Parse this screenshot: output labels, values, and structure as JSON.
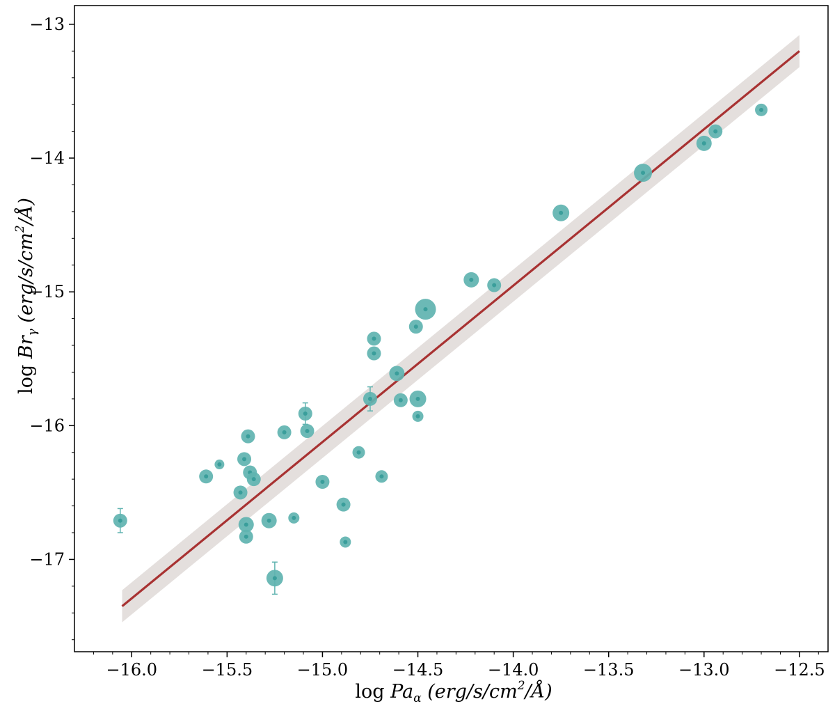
{
  "chart_data": {
    "type": "scatter",
    "xlabel": "log Pa_α (erg/s/cm^2/Å)",
    "ylabel": "log Br_γ (erg/s/cm^2/Å)",
    "xlabel_parts": {
      "prefix": "log ",
      "var": "Pa",
      "sub": "α",
      "units_a": " (erg/s/cm",
      "sup": "2",
      "units_b": "/Å)"
    },
    "ylabel_parts": {
      "prefix": "log ",
      "var": "Br",
      "sub": "γ",
      "units_a": " (erg/s/cm",
      "sup": "2",
      "units_b": "/Å)"
    },
    "xlim": [
      -16.3,
      -12.35
    ],
    "ylim": [
      -17.69,
      -12.86
    ],
    "xticks": [
      -16.0,
      -15.5,
      -15.0,
      -14.5,
      -14.0,
      -13.5,
      -13.0,
      -12.5
    ],
    "xtick_labels": [
      "−16.0",
      "−15.5",
      "−15.0",
      "−14.5",
      "−14.0",
      "−13.5",
      "−13.0",
      "−12.5"
    ],
    "yticks": [
      -13,
      -14,
      -15,
      -16,
      -17
    ],
    "ytick_labels": [
      "−13",
      "−14",
      "−15",
      "−16",
      "−17"
    ],
    "grid": false,
    "colors": {
      "points": "#5fb3b0",
      "point_core": "#3a9e9b",
      "fit_line": "#a83232",
      "fit_band": "#e4dfdd"
    },
    "fit": {
      "x": [
        -16.05,
        -12.5
      ],
      "y": [
        -17.35,
        -13.2
      ],
      "band_halfwidth": 0.12
    },
    "points": [
      {
        "x": -16.06,
        "y": -16.71,
        "yerr": 0.09,
        "size": 1.0
      },
      {
        "x": -15.61,
        "y": -16.38,
        "yerr": 0.0,
        "size": 1.0
      },
      {
        "x": -15.54,
        "y": -16.29,
        "yerr": 0.0,
        "size": 0.7
      },
      {
        "x": -15.43,
        "y": -16.5,
        "yerr": 0.0,
        "size": 1.0
      },
      {
        "x": -15.41,
        "y": -16.25,
        "yerr": 0.0,
        "size": 1.0
      },
      {
        "x": -15.39,
        "y": -16.08,
        "yerr": 0.0,
        "size": 1.0
      },
      {
        "x": -15.38,
        "y": -16.35,
        "yerr": 0.0,
        "size": 1.0
      },
      {
        "x": -15.36,
        "y": -16.4,
        "yerr": 0.0,
        "size": 1.0
      },
      {
        "x": -15.4,
        "y": -16.74,
        "yerr": 0.0,
        "size": 1.1
      },
      {
        "x": -15.4,
        "y": -16.83,
        "yerr": 0.0,
        "size": 1.0
      },
      {
        "x": -15.28,
        "y": -16.71,
        "yerr": 0.0,
        "size": 1.1
      },
      {
        "x": -15.25,
        "y": -17.14,
        "yerr": 0.12,
        "size": 1.2
      },
      {
        "x": -15.2,
        "y": -16.05,
        "yerr": 0.0,
        "size": 1.0
      },
      {
        "x": -15.15,
        "y": -16.69,
        "yerr": 0.0,
        "size": 0.8
      },
      {
        "x": -15.09,
        "y": -15.91,
        "yerr": 0.08,
        "size": 1.0
      },
      {
        "x": -15.08,
        "y": -16.04,
        "yerr": 0.0,
        "size": 1.0
      },
      {
        "x": -15.0,
        "y": -16.42,
        "yerr": 0.0,
        "size": 1.0
      },
      {
        "x": -14.89,
        "y": -16.59,
        "yerr": 0.0,
        "size": 1.0
      },
      {
        "x": -14.88,
        "y": -16.87,
        "yerr": 0.0,
        "size": 0.8
      },
      {
        "x": -14.81,
        "y": -16.2,
        "yerr": 0.0,
        "size": 0.9
      },
      {
        "x": -14.75,
        "y": -15.8,
        "yerr": 0.09,
        "size": 1.0
      },
      {
        "x": -14.73,
        "y": -15.35,
        "yerr": 0.0,
        "size": 1.0
      },
      {
        "x": -14.73,
        "y": -15.46,
        "yerr": 0.0,
        "size": 1.0
      },
      {
        "x": -14.69,
        "y": -16.38,
        "yerr": 0.0,
        "size": 0.9
      },
      {
        "x": -14.61,
        "y": -15.61,
        "yerr": 0.0,
        "size": 1.1
      },
      {
        "x": -14.59,
        "y": -15.81,
        "yerr": 0.0,
        "size": 1.0
      },
      {
        "x": -14.51,
        "y": -15.26,
        "yerr": 0.0,
        "size": 1.0
      },
      {
        "x": -14.5,
        "y": -15.8,
        "yerr": 0.0,
        "size": 1.2
      },
      {
        "x": -14.5,
        "y": -15.93,
        "yerr": 0.0,
        "size": 0.8
      },
      {
        "x": -14.46,
        "y": -15.13,
        "yerr": 0.0,
        "size": 1.5
      },
      {
        "x": -14.22,
        "y": -14.91,
        "yerr": 0.0,
        "size": 1.1
      },
      {
        "x": -14.1,
        "y": -14.95,
        "yerr": 0.0,
        "size": 1.0
      },
      {
        "x": -13.75,
        "y": -14.41,
        "yerr": 0.0,
        "size": 1.2
      },
      {
        "x": -13.32,
        "y": -14.11,
        "yerr": 0.0,
        "size": 1.3
      },
      {
        "x": -13.0,
        "y": -13.89,
        "yerr": 0.0,
        "size": 1.1
      },
      {
        "x": -12.94,
        "y": -13.8,
        "yerr": 0.0,
        "size": 1.0
      },
      {
        "x": -12.7,
        "y": -13.64,
        "yerr": 0.0,
        "size": 0.9
      }
    ]
  }
}
